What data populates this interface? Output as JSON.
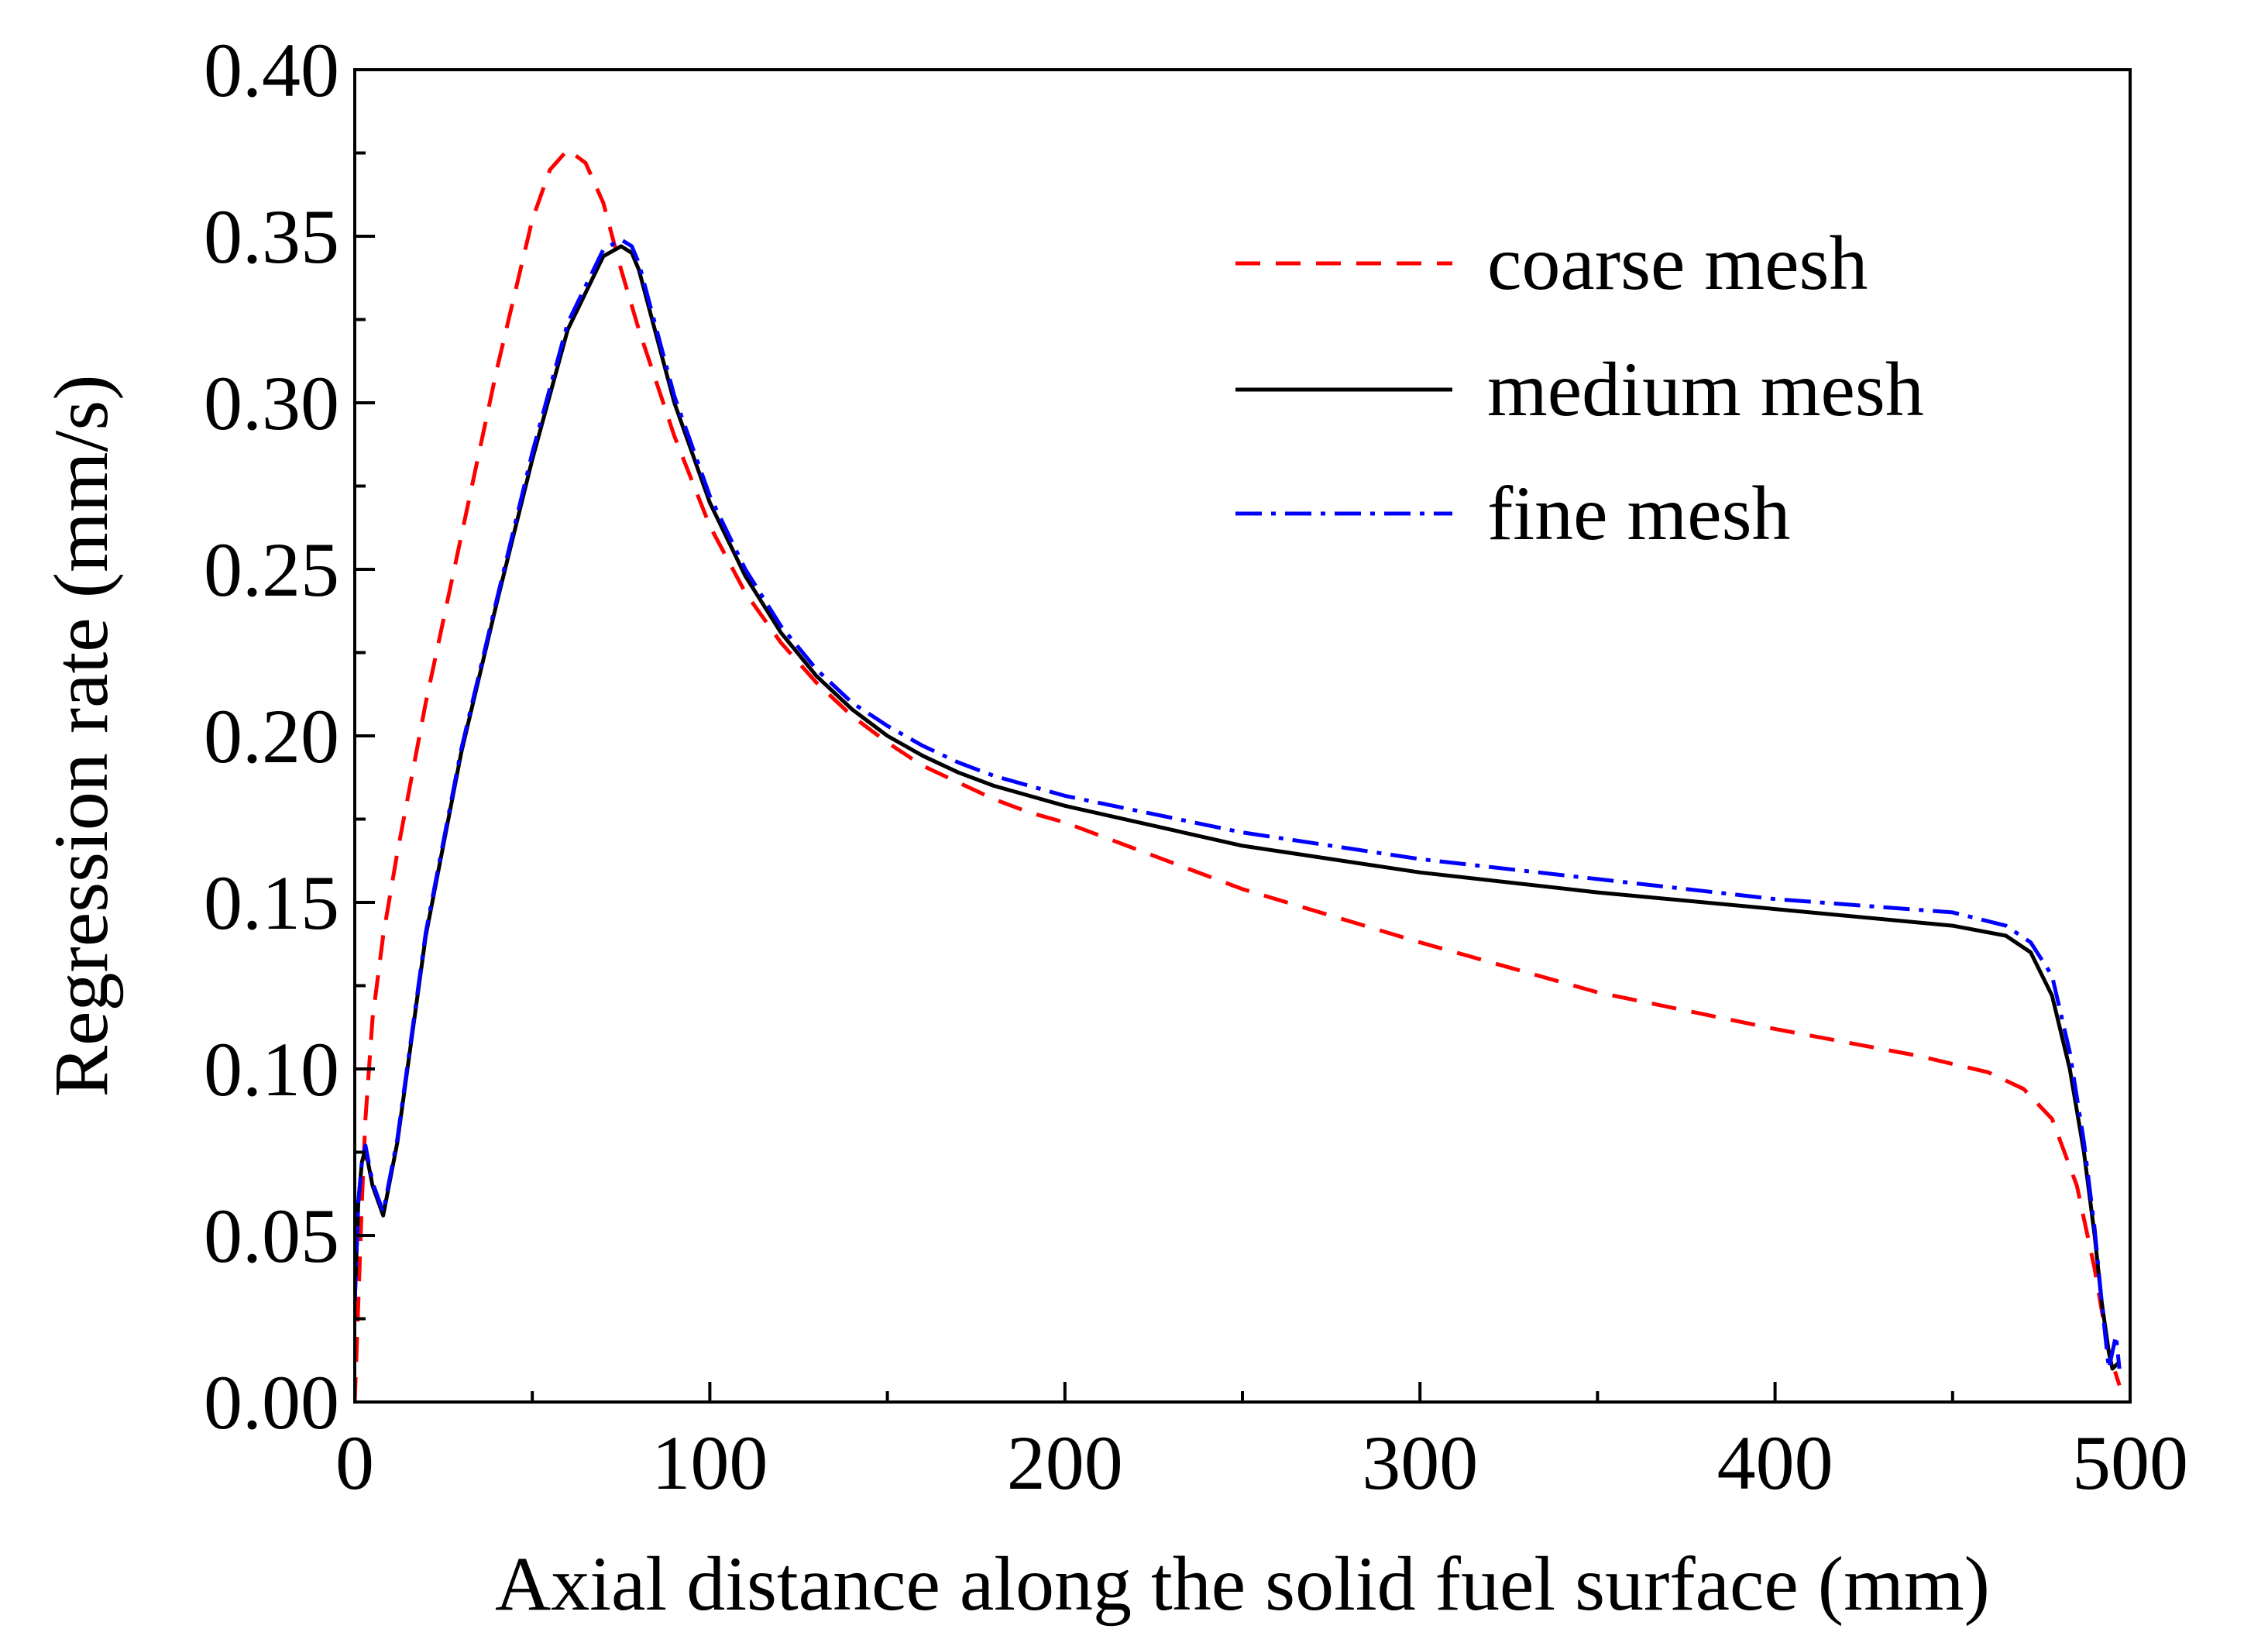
{
  "chart_data": {
    "type": "line",
    "title": "",
    "xlabel": "Axial distance along the solid fuel surface (mm)",
    "ylabel": "Regression rate (mm/s)",
    "xlim": [
      0,
      500
    ],
    "ylim": [
      0,
      0.4
    ],
    "xticks": [
      0,
      100,
      200,
      300,
      400,
      500
    ],
    "xtick_labels": [
      "0",
      "100",
      "200",
      "300",
      "400",
      "500"
    ],
    "yticks": [
      0,
      0.05,
      0.1,
      0.15,
      0.2,
      0.25,
      0.3,
      0.35,
      0.4
    ],
    "ytick_labels": [
      "0.00",
      "0.05",
      "0.10",
      "0.15",
      "0.20",
      "0.25",
      "0.30",
      "0.35",
      "0.40"
    ],
    "grid": false,
    "legend_position": "top-right",
    "series": [
      {
        "name": "coarse mesh",
        "color": "#ff0000",
        "style": "dashed",
        "x": [
          0,
          1,
          2,
          3,
          5,
          8,
          12,
          20,
          30,
          40,
          50,
          55,
          60,
          65,
          70,
          75,
          80,
          90,
          100,
          110,
          120,
          130,
          140,
          150,
          160,
          170,
          180,
          190,
          200,
          250,
          300,
          350,
          400,
          440,
          460,
          470,
          478,
          485,
          490,
          494,
          497
        ],
        "y": [
          0.0,
          0.03,
          0.06,
          0.085,
          0.115,
          0.14,
          0.165,
          0.21,
          0.26,
          0.31,
          0.355,
          0.37,
          0.376,
          0.372,
          0.36,
          0.34,
          0.322,
          0.29,
          0.263,
          0.243,
          0.228,
          0.216,
          0.206,
          0.198,
          0.191,
          0.186,
          0.181,
          0.177,
          0.174,
          0.154,
          0.138,
          0.123,
          0.112,
          0.104,
          0.099,
          0.094,
          0.085,
          0.065,
          0.04,
          0.015,
          0.005
        ]
      },
      {
        "name": "medium mesh",
        "color": "#000000",
        "style": "solid",
        "x": [
          0,
          1,
          2,
          3,
          5,
          8,
          12,
          20,
          30,
          40,
          50,
          60,
          70,
          75,
          78,
          80,
          85,
          90,
          100,
          110,
          120,
          130,
          140,
          150,
          160,
          170,
          180,
          190,
          200,
          250,
          300,
          350,
          400,
          450,
          465,
          472,
          478,
          483,
          487,
          490,
          492,
          494,
          495,
          497
        ],
        "y": [
          0.03,
          0.06,
          0.072,
          0.076,
          0.065,
          0.056,
          0.078,
          0.14,
          0.195,
          0.24,
          0.283,
          0.322,
          0.344,
          0.347,
          0.345,
          0.34,
          0.32,
          0.3,
          0.27,
          0.248,
          0.231,
          0.218,
          0.208,
          0.2,
          0.194,
          0.189,
          0.185,
          0.182,
          0.179,
          0.167,
          0.159,
          0.153,
          0.148,
          0.143,
          0.14,
          0.135,
          0.122,
          0.1,
          0.075,
          0.05,
          0.03,
          0.015,
          0.01,
          0.012
        ]
      },
      {
        "name": "fine mesh",
        "color": "#0000ff",
        "style": "dashdot",
        "x": [
          0,
          1,
          2,
          3,
          5,
          8,
          12,
          20,
          30,
          40,
          50,
          60,
          70,
          75,
          78,
          80,
          85,
          90,
          100,
          110,
          120,
          130,
          140,
          150,
          160,
          170,
          180,
          190,
          200,
          250,
          300,
          350,
          400,
          450,
          465,
          472,
          478,
          483,
          487,
          490,
          492,
          494,
          495,
          496,
          497
        ],
        "y": [
          0.03,
          0.06,
          0.072,
          0.077,
          0.066,
          0.057,
          0.079,
          0.141,
          0.196,
          0.241,
          0.285,
          0.324,
          0.346,
          0.349,
          0.347,
          0.342,
          0.322,
          0.302,
          0.272,
          0.25,
          0.233,
          0.22,
          0.21,
          0.203,
          0.197,
          0.192,
          0.188,
          0.185,
          0.182,
          0.171,
          0.163,
          0.157,
          0.151,
          0.147,
          0.143,
          0.138,
          0.128,
          0.105,
          0.078,
          0.052,
          0.03,
          0.01,
          0.015,
          0.02,
          0.01
        ]
      }
    ]
  }
}
